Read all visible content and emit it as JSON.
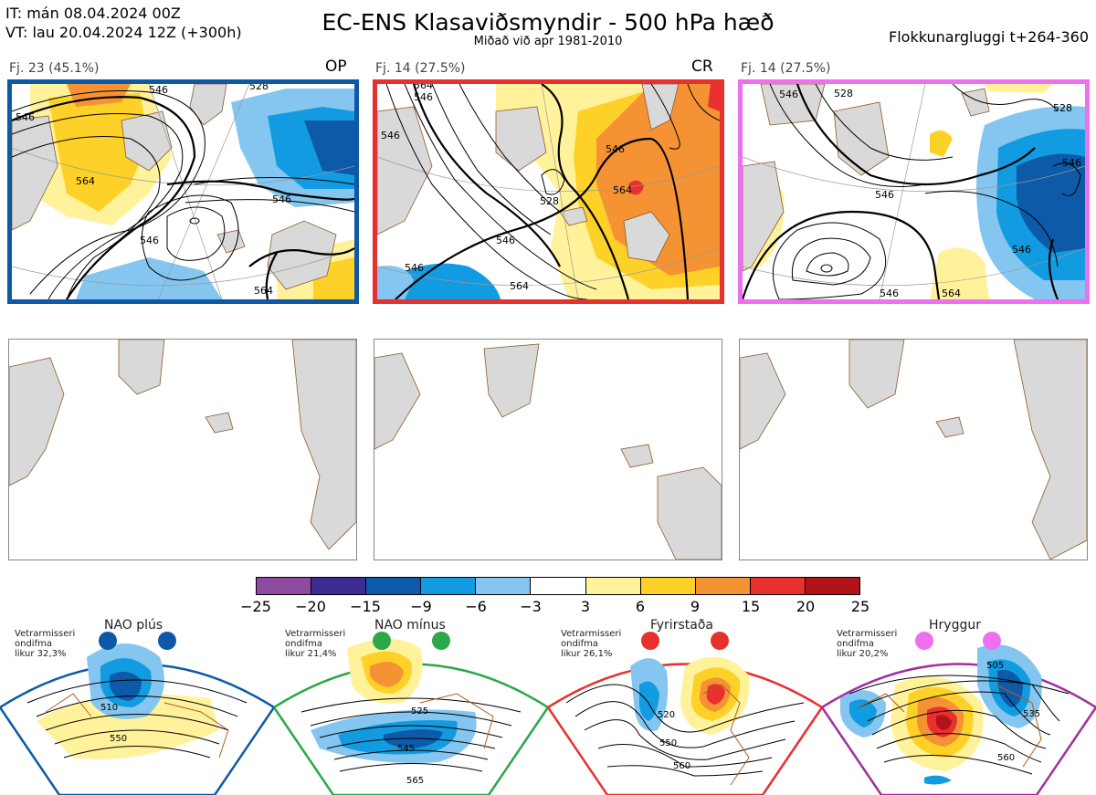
{
  "header": {
    "it_line": "IT: mán 08.04.2024 00Z",
    "vt_line": "VT: lau 20.04.2024 12Z  (+300h)",
    "title": "EC-ENS Klasaviðsmyndir - 500 hPa hæð",
    "subtitle": "Miðað við apr 1981-2010",
    "window": "Flokkunargluggi t+264-360"
  },
  "clusters": [
    {
      "label": "Fj. 23 (45.1%)",
      "tag": "OP",
      "color": "#0d59a8",
      "contours": [
        "546",
        "546",
        "564",
        "546",
        "546",
        "528",
        "564"
      ]
    },
    {
      "label": "Fj. 14 (27.5%)",
      "tag": "CR",
      "color": "#e8302e",
      "contours": [
        "546",
        "546",
        "528",
        "564",
        "546",
        "546",
        "564",
        "546",
        "564"
      ]
    },
    {
      "label": "Fj. 14 (27.5%)",
      "tag": "",
      "color": "#ee70ee",
      "contours": [
        "546",
        "528",
        "546",
        "528",
        "546",
        "546",
        "564",
        "546"
      ]
    }
  ],
  "colorbar": {
    "colors": [
      "#8d4ba0",
      "#3f2c90",
      "#0c5aa8",
      "#129be0",
      "#84c6ef",
      "#ffffff",
      "#fff29a",
      "#fdd127",
      "#f59233",
      "#e8302e",
      "#b01318"
    ],
    "labels": [
      "−25",
      "−20",
      "−15",
      "−9",
      "−6",
      "−3",
      "3",
      "6",
      "9",
      "15",
      "20",
      "25"
    ]
  },
  "regimes": [
    {
      "name": "NAO plús",
      "line1": "Vetrarmisseri",
      "line2": "ondifma",
      "line3": "likur 32,3%",
      "color": "#0d59a8",
      "contours": [
        "510",
        "550"
      ]
    },
    {
      "name": "NAO mínus",
      "line1": "Vetrarmisseri",
      "line2": "ondifma",
      "line3": "likur 21,4%",
      "color": "#2aa84a",
      "contours": [
        "525",
        "545",
        "565"
      ]
    },
    {
      "name": "Fyrirstaða",
      "line1": "Vetrarmisseri",
      "line2": "ondifma",
      "line3": "likur 26,1%",
      "color": "#e8302e",
      "contours": [
        "520",
        "550",
        "560"
      ]
    },
    {
      "name": "Hryggur",
      "line1": "Vetrarmisseri",
      "line2": "ondifma",
      "line3": "likur 20,2%",
      "color": "#a030a0",
      "contours": [
        "505",
        "535",
        "560"
      ]
    }
  ]
}
